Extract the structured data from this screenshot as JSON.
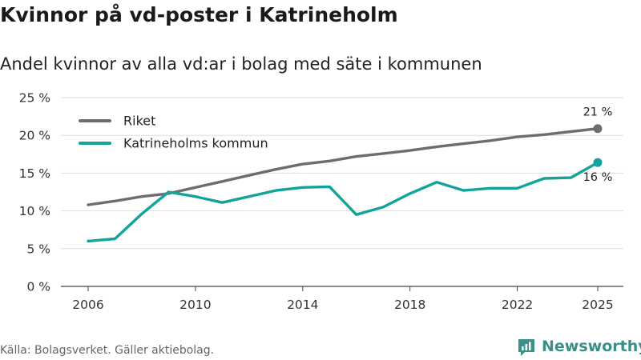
{
  "title": "Kvinnor på vd-poster i Katrineholm",
  "subtitle": "Andel kvinnor av alla vd:ar i bolag med säte i kommunen",
  "source": "Källa: Bolagsverket. Gäller aktiebolag.",
  "brand": "Newsworthy",
  "colors": {
    "riket": "#6e6c70",
    "katrineholm": "#14a39a",
    "grid": "#dddddd",
    "brand": "#3a8f88"
  },
  "chart_data": {
    "type": "line",
    "title": "Kvinnor på vd-poster i Katrineholm",
    "subtitle": "Andel kvinnor av alla vd:ar i bolag med säte i kommunen",
    "xlabel": "",
    "ylabel": "",
    "x": [
      2006,
      2007,
      2008,
      2009,
      2010,
      2011,
      2012,
      2013,
      2014,
      2015,
      2016,
      2017,
      2018,
      2019,
      2020,
      2021,
      2022,
      2023,
      2024,
      2025
    ],
    "xticks": [
      2006,
      2010,
      2014,
      2018,
      2022,
      2025
    ],
    "xtick_labels": [
      "2006",
      "2010",
      "2014",
      "2018",
      "2022",
      "2025"
    ],
    "ylim": [
      0,
      25
    ],
    "yticks": [
      0,
      5,
      10,
      15,
      20,
      25
    ],
    "ytick_labels": [
      "0 %",
      "5 %",
      "10 %",
      "15 %",
      "20 %",
      "25 %"
    ],
    "grid": true,
    "legend_position": "top-left",
    "series": [
      {
        "name": "Riket",
        "color": "#6e6c70",
        "values": [
          10.8,
          11.3,
          11.9,
          12.3,
          13.1,
          13.9,
          14.7,
          15.5,
          16.2,
          16.6,
          17.2,
          17.6,
          18.0,
          18.5,
          18.9,
          19.3,
          19.8,
          20.1,
          20.5,
          20.9
        ],
        "end_label": "21 %"
      },
      {
        "name": "Katrineholms kommun",
        "color": "#14a39a",
        "values": [
          6.0,
          6.3,
          9.6,
          12.5,
          11.9,
          11.1,
          11.9,
          12.7,
          13.1,
          13.2,
          9.5,
          10.5,
          12.3,
          13.8,
          12.7,
          13.0,
          13.0,
          14.3,
          14.4,
          16.4
        ],
        "end_label": "16 %"
      }
    ]
  }
}
